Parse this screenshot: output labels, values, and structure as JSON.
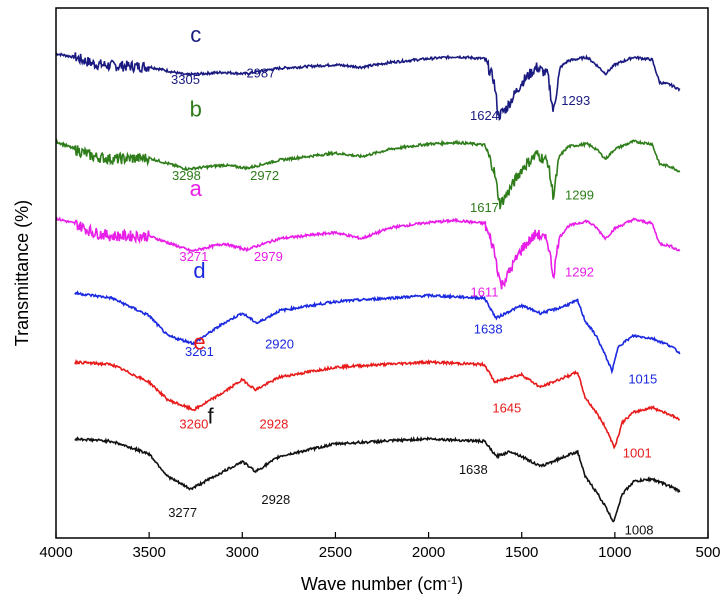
{
  "chart_data": {
    "type": "line",
    "xlabel": "Wave number (cm",
    "xlabel_superscript": "-1",
    "xlabel_suffix": ")",
    "ylabel": "Transmittance (%)",
    "x_reversed": true,
    "xlim": [
      4000,
      500
    ],
    "x_ticks": [
      4000,
      3500,
      3000,
      2500,
      2000,
      1500,
      1000,
      500
    ],
    "y_ticks_shown": false,
    "grid": false,
    "series": [
      {
        "name": "c",
        "color": "#1a1a80",
        "offset": 0.855,
        "scale": 0.095,
        "points": [
          [
            4000,
            0.62
          ],
          [
            3900,
            0.55
          ],
          [
            3800,
            0.42
          ],
          [
            3700,
            0.38
          ],
          [
            3500,
            0.36
          ],
          [
            3305,
            0.2
          ],
          [
            3100,
            0.25
          ],
          [
            2987,
            0.22
          ],
          [
            2800,
            0.33
          ],
          [
            2500,
            0.4
          ],
          [
            2360,
            0.35
          ],
          [
            2200,
            0.45
          ],
          [
            2000,
            0.52
          ],
          [
            1850,
            0.56
          ],
          [
            1700,
            0.52
          ],
          [
            1650,
            0.1
          ],
          [
            1624,
            -0.62
          ],
          [
            1580,
            -0.45
          ],
          [
            1500,
            0.05
          ],
          [
            1420,
            0.35
          ],
          [
            1360,
            0.2
          ],
          [
            1330,
            -0.55
          ],
          [
            1300,
            0.2
          ],
          [
            1293,
            0.35
          ],
          [
            1250,
            0.48
          ],
          [
            1150,
            0.55
          ],
          [
            1100,
            0.4
          ],
          [
            1050,
            0.22
          ],
          [
            1000,
            0.4
          ],
          [
            900,
            0.55
          ],
          [
            800,
            0.5
          ],
          [
            760,
            0.05
          ],
          [
            700,
            0.0
          ],
          [
            650,
            -0.1
          ]
        ],
        "labels": [
          {
            "text": "3305",
            "x": 3305,
            "y": 0.02
          },
          {
            "text": "2987",
            "x": 2900,
            "y": 0.15
          },
          {
            "text": "1624",
            "x": 1700,
            "y": -0.7
          },
          {
            "text": "1293",
            "x": 1210,
            "y": -0.4
          }
        ]
      },
      {
        "name": "b",
        "color": "#2e7d1a",
        "offset": 0.715,
        "scale": 0.095,
        "points": [
          [
            4000,
            0.35
          ],
          [
            3900,
            0.2
          ],
          [
            3800,
            0.05
          ],
          [
            3700,
            0.0
          ],
          [
            3500,
            0.02
          ],
          [
            3298,
            -0.2
          ],
          [
            3100,
            -0.12
          ],
          [
            2972,
            -0.18
          ],
          [
            2800,
            -0.02
          ],
          [
            2500,
            0.12
          ],
          [
            2360,
            0.05
          ],
          [
            2200,
            0.2
          ],
          [
            2000,
            0.3
          ],
          [
            1850,
            0.33
          ],
          [
            1700,
            0.28
          ],
          [
            1650,
            -0.2
          ],
          [
            1617,
            -0.9
          ],
          [
            1580,
            -0.7
          ],
          [
            1500,
            -0.2
          ],
          [
            1420,
            0.1
          ],
          [
            1360,
            -0.05
          ],
          [
            1330,
            -0.75
          ],
          [
            1300,
            0.0
          ],
          [
            1299,
            0.05
          ],
          [
            1250,
            0.25
          ],
          [
            1150,
            0.3
          ],
          [
            1100,
            0.2
          ],
          [
            1050,
            0.0
          ],
          [
            1000,
            0.2
          ],
          [
            900,
            0.35
          ],
          [
            800,
            0.3
          ],
          [
            760,
            -0.1
          ],
          [
            700,
            -0.15
          ],
          [
            650,
            -0.25
          ]
        ],
        "labels": [
          {
            "text": "3298",
            "x": 3300,
            "y": -0.42
          },
          {
            "text": "2972",
            "x": 2880,
            "y": -0.42
          },
          {
            "text": "1617",
            "x": 1700,
            "y": -1.05
          },
          {
            "text": "1299",
            "x": 1190,
            "y": -0.8
          }
        ]
      },
      {
        "name": "a",
        "color": "#e81de8",
        "offset": 0.565,
        "scale": 0.095,
        "points": [
          [
            4000,
            0.4
          ],
          [
            3900,
            0.3
          ],
          [
            3800,
            0.12
          ],
          [
            3700,
            0.05
          ],
          [
            3500,
            0.05
          ],
          [
            3271,
            -0.25
          ],
          [
            3100,
            -0.1
          ],
          [
            2979,
            -0.22
          ],
          [
            2800,
            0.0
          ],
          [
            2500,
            0.12
          ],
          [
            2360,
            0.0
          ],
          [
            2200,
            0.22
          ],
          [
            2000,
            0.32
          ],
          [
            1850,
            0.36
          ],
          [
            1700,
            0.3
          ],
          [
            1650,
            -0.2
          ],
          [
            1611,
            -0.95
          ],
          [
            1580,
            -0.75
          ],
          [
            1500,
            -0.2
          ],
          [
            1420,
            0.1
          ],
          [
            1360,
            -0.05
          ],
          [
            1330,
            -0.75
          ],
          [
            1300,
            0.0
          ],
          [
            1292,
            0.05
          ],
          [
            1250,
            0.25
          ],
          [
            1150,
            0.35
          ],
          [
            1100,
            0.22
          ],
          [
            1050,
            0.0
          ],
          [
            1000,
            0.2
          ],
          [
            900,
            0.38
          ],
          [
            800,
            0.3
          ],
          [
            760,
            -0.1
          ],
          [
            700,
            -0.15
          ],
          [
            650,
            -0.25
          ]
        ],
        "labels": [
          {
            "text": "3271",
            "x": 3260,
            "y": -0.45
          },
          {
            "text": "2979",
            "x": 2860,
            "y": -0.45
          },
          {
            "text": "1611",
            "x": 1700,
            "y": -1.15
          },
          {
            "text": "1292",
            "x": 1190,
            "y": -0.75
          }
        ]
      },
      {
        "name": "d",
        "color": "#1a28e0",
        "offset": 0.41,
        "scale": 0.095,
        "points": [
          [
            3900,
            0.55
          ],
          [
            3700,
            0.45
          ],
          [
            3500,
            0.1
          ],
          [
            3400,
            -0.3
          ],
          [
            3261,
            -0.45
          ],
          [
            3100,
            -0.05
          ],
          [
            3000,
            0.15
          ],
          [
            2920,
            -0.05
          ],
          [
            2800,
            0.2
          ],
          [
            2500,
            0.38
          ],
          [
            2000,
            0.5
          ],
          [
            1700,
            0.45
          ],
          [
            1638,
            0.05
          ],
          [
            1560,
            0.2
          ],
          [
            1500,
            0.3
          ],
          [
            1400,
            0.15
          ],
          [
            1300,
            0.25
          ],
          [
            1200,
            0.4
          ],
          [
            1160,
            0.0
          ],
          [
            1100,
            -0.3
          ],
          [
            1050,
            -0.7
          ],
          [
            1015,
            -1.0
          ],
          [
            980,
            -0.5
          ],
          [
            900,
            -0.3
          ],
          [
            800,
            -0.35
          ],
          [
            700,
            -0.5
          ],
          [
            650,
            -0.65
          ]
        ],
        "labels": [
          {
            "text": "3261",
            "x": 3230,
            "y": -0.7
          },
          {
            "text": "2920",
            "x": 2800,
            "y": -0.55
          },
          {
            "text": "1638",
            "x": 1680,
            "y": -0.25
          },
          {
            "text": "1015",
            "x": 850,
            "y": -1.25
          }
        ]
      },
      {
        "name": "e",
        "color": "#e81a1a",
        "offset": 0.275,
        "scale": 0.095,
        "points": [
          [
            3900,
            0.6
          ],
          [
            3700,
            0.55
          ],
          [
            3500,
            0.2
          ],
          [
            3400,
            -0.15
          ],
          [
            3260,
            -0.35
          ],
          [
            3100,
            0.0
          ],
          [
            3000,
            0.25
          ],
          [
            2928,
            0.05
          ],
          [
            2800,
            0.3
          ],
          [
            2500,
            0.5
          ],
          [
            2000,
            0.6
          ],
          [
            1700,
            0.55
          ],
          [
            1645,
            0.2
          ],
          [
            1560,
            0.3
          ],
          [
            1500,
            0.35
          ],
          [
            1400,
            0.1
          ],
          [
            1300,
            0.25
          ],
          [
            1200,
            0.4
          ],
          [
            1160,
            -0.1
          ],
          [
            1100,
            -0.4
          ],
          [
            1050,
            -0.7
          ],
          [
            1001,
            -1.1
          ],
          [
            960,
            -0.6
          ],
          [
            900,
            -0.4
          ],
          [
            800,
            -0.3
          ],
          [
            700,
            -0.45
          ],
          [
            650,
            -0.55
          ]
        ],
        "labels": [
          {
            "text": "3260",
            "x": 3260,
            "y": -0.72
          },
          {
            "text": "2928",
            "x": 2830,
            "y": -0.72
          },
          {
            "text": "1645",
            "x": 1580,
            "y": -0.4
          },
          {
            "text": "1001",
            "x": 880,
            "y": -1.3
          }
        ]
      },
      {
        "name": "f",
        "color": "#111111",
        "offset": 0.135,
        "scale": 0.095,
        "points": [
          [
            3900,
            0.55
          ],
          [
            3700,
            0.5
          ],
          [
            3500,
            0.25
          ],
          [
            3400,
            -0.2
          ],
          [
            3277,
            -0.45
          ],
          [
            3100,
            -0.1
          ],
          [
            3000,
            0.1
          ],
          [
            2928,
            -0.1
          ],
          [
            2800,
            0.2
          ],
          [
            2500,
            0.45
          ],
          [
            2000,
            0.55
          ],
          [
            1700,
            0.5
          ],
          [
            1638,
            0.2
          ],
          [
            1560,
            0.3
          ],
          [
            1500,
            0.2
          ],
          [
            1400,
            0.0
          ],
          [
            1300,
            0.15
          ],
          [
            1200,
            0.3
          ],
          [
            1160,
            -0.2
          ],
          [
            1100,
            -0.5
          ],
          [
            1050,
            -0.8
          ],
          [
            1008,
            -1.1
          ],
          [
            960,
            -0.55
          ],
          [
            900,
            -0.3
          ],
          [
            800,
            -0.25
          ],
          [
            700,
            -0.4
          ],
          [
            650,
            -0.5
          ]
        ],
        "labels": [
          {
            "text": "3277",
            "x": 3320,
            "y": -1.0
          },
          {
            "text": "2928",
            "x": 2820,
            "y": -0.75
          },
          {
            "text": "1638",
            "x": 1760,
            "y": -0.15
          },
          {
            "text": "1008",
            "x": 870,
            "y": -1.35
          }
        ]
      }
    ],
    "curve_letters": [
      {
        "text": "c",
        "series": "c",
        "x": 3250
      },
      {
        "text": "b",
        "series": "b",
        "x": 3250
      },
      {
        "text": "a",
        "series": "a",
        "x": 3250
      },
      {
        "text": "d",
        "series": "d",
        "x": 3230
      },
      {
        "text": "e",
        "series": "e",
        "x": 3230
      },
      {
        "text": "f",
        "series": "f",
        "x": 3170
      }
    ]
  }
}
